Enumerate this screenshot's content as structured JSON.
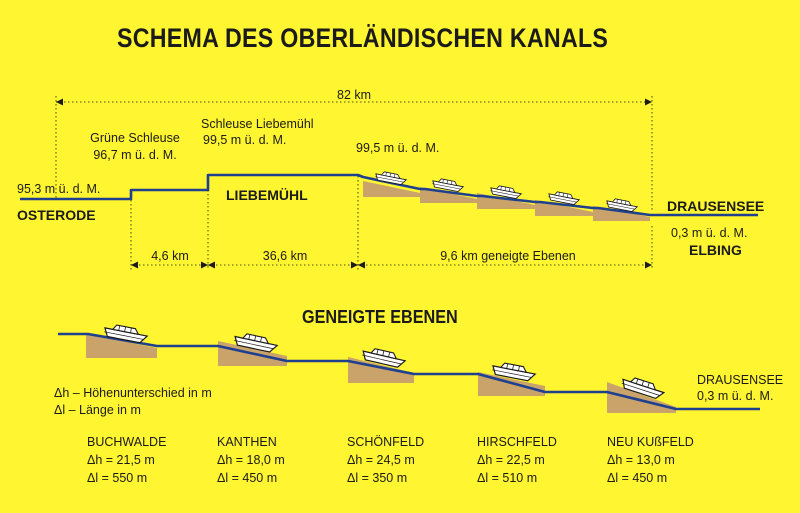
{
  "title": "SCHEMA DES OBERLÄNDISCHEN KANALS",
  "overview": {
    "total_length": "82 km",
    "start": {
      "name": "OSTERODE",
      "elevation": "95,3 m ü. d. M."
    },
    "lock1": {
      "name": "Grüne Schleuse",
      "elevation": "96,7 m ü. d. M."
    },
    "lock2": {
      "name": "Schleuse Liebemühl",
      "elevation": "99,5 m ü. d. M."
    },
    "town": "LIEBEMÜHL",
    "plateau": {
      "elevation": "99,5 m ü. d. M."
    },
    "end": {
      "name": "DRAUSENSEE",
      "elevation": "0,3 m ü. d. M.",
      "town": "ELBING"
    },
    "segments": [
      "4,6 km",
      "36,6 km",
      "9,6 km geneigte Ebenen"
    ]
  },
  "inclines": {
    "title": "GENEIGTE EBENEN",
    "legend": {
      "dh": "Δh – Höhenunterschied in m",
      "dl": "Δl – Länge in m"
    },
    "end": {
      "name": "DRAUSENSEE",
      "elevation": "0,3 m ü. d. M."
    },
    "stations": [
      {
        "name": "BUCHWALDE",
        "dh": "Δh = 21,5 m",
        "dl": "Δl = 550 m"
      },
      {
        "name": "KANTHEN",
        "dh": "Δh = 18,0 m",
        "dl": "Δl = 450 m"
      },
      {
        "name": "SCHÖNFELD",
        "dh": "Δh = 24,5 m",
        "dl": "Δl = 350 m"
      },
      {
        "name": "HIRSCHFELD",
        "dh": "Δh = 22,5 m",
        "dl": "Δl = 510 m"
      },
      {
        "name": "NEU KUßFELD",
        "dh": "Δh = 13,0 m",
        "dl": "Δl = 450 m"
      }
    ]
  },
  "colors": {
    "background": "#fff530",
    "water": "#1f3f8f",
    "ramp": "#c9a36a",
    "text": "#1b1b1b"
  }
}
